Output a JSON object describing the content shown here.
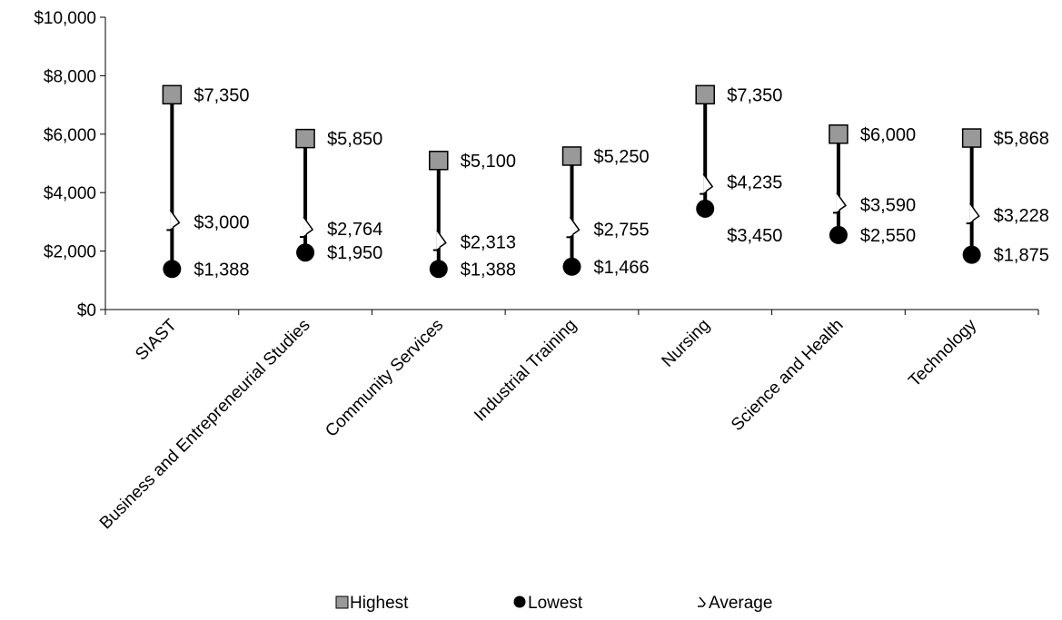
{
  "chart_data": {
    "type": "high-low-average",
    "ylim": [
      0,
      10000
    ],
    "y_ticks": [
      0,
      2000,
      4000,
      6000,
      8000,
      10000
    ],
    "y_tick_labels": [
      "$0",
      "$2,000",
      "$4,000",
      "$6,000",
      "$8,000",
      "$10,000"
    ],
    "grid": false,
    "legend_placement": "bottom",
    "categories": [
      "SIAST",
      "Business and Entrepreneurial Studies",
      "Community Services",
      "Industrial Training",
      "Nursing",
      "Science and Health",
      "Technology"
    ],
    "series": [
      {
        "name": "Highest",
        "marker": "square",
        "color": "#999999",
        "values": [
          7350,
          5850,
          5100,
          5250,
          7350,
          6000,
          5868
        ],
        "labels": [
          "$7,350",
          "$5,850",
          "$5,100",
          "$5,250",
          "$7,350",
          "$6,000",
          "$5,868"
        ]
      },
      {
        "name": "Lowest",
        "marker": "circle",
        "color": "#000000",
        "values": [
          1388,
          1950,
          1388,
          1466,
          3450,
          2550,
          1875
        ],
        "labels": [
          "$1,388",
          "$1,950",
          "$1,388",
          "$1,466",
          "$3,450",
          "$2,550",
          "$1,875"
        ]
      },
      {
        "name": "Average",
        "marker": "triangle",
        "color": "#ffffff",
        "values": [
          3000,
          2764,
          2313,
          2755,
          4235,
          3590,
          3228
        ],
        "labels": [
          "$3,000",
          "$2,764",
          "$2,313",
          "$2,755",
          "$4,235",
          "$3,590",
          "$3,228"
        ]
      }
    ]
  }
}
